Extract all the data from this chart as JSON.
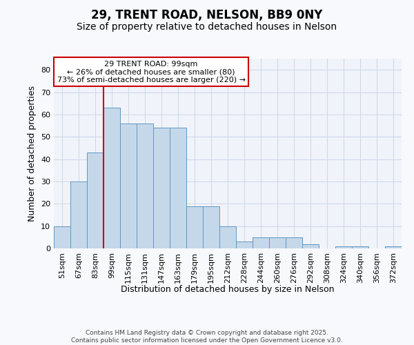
{
  "title1": "29, TRENT ROAD, NELSON, BB9 0NY",
  "title2": "Size of property relative to detached houses in Nelson",
  "xlabel": "Distribution of detached houses by size in Nelson",
  "ylabel": "Number of detached properties",
  "bar_labels": [
    "51sqm",
    "67sqm",
    "83sqm",
    "99sqm",
    "115sqm",
    "131sqm",
    "147sqm",
    "163sqm",
    "179sqm",
    "195sqm",
    "212sqm",
    "228sqm",
    "244sqm",
    "260sqm",
    "276sqm",
    "292sqm",
    "308sqm",
    "324sqm",
    "340sqm",
    "356sqm",
    "372sqm"
  ],
  "bar_values": [
    10,
    30,
    43,
    63,
    56,
    56,
    54,
    54,
    19,
    19,
    10,
    3,
    5,
    5,
    5,
    2,
    0,
    1,
    1,
    0,
    1
  ],
  "bar_color": "#c5d8ea",
  "bar_edge_color": "#6096c0",
  "red_line_index": 3,
  "annotation_title": "29 TRENT ROAD: 99sqm",
  "annotation_line1": "← 26% of detached houses are smaller (80)",
  "annotation_line2": "73% of semi-detached houses are larger (220) →",
  "red_line_color": "#cc0000",
  "ylim": [
    0,
    85
  ],
  "yticks": [
    0,
    10,
    20,
    30,
    40,
    50,
    60,
    70,
    80
  ],
  "bg_color": "#f7f9fc",
  "plot_bg_color": "#f0f4fa",
  "grid_color": "#d0d8e8",
  "footer": "Contains HM Land Registry data © Crown copyright and database right 2025.\nContains public sector information licensed under the Open Government Licence v3.0.",
  "title_fontsize": 12,
  "subtitle_fontsize": 10,
  "axis_label_fontsize": 9,
  "tick_fontsize": 8,
  "annotation_fontsize": 8
}
